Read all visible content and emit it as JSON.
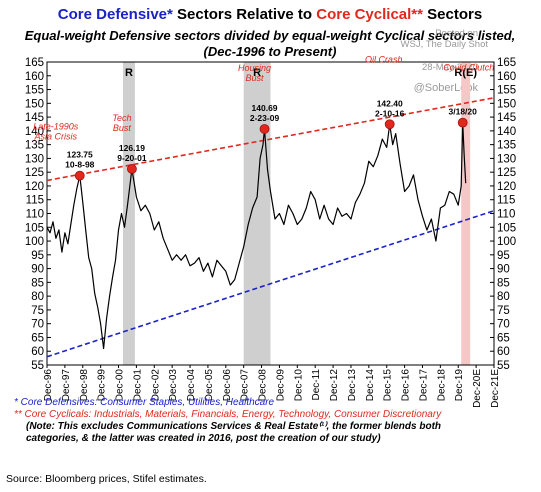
{
  "title": {
    "part1": "Core Defensive*",
    "part2": " Sectors  Relative to ",
    "part3": "Core Cyclical**",
    "part4": " Sectors",
    "color_defensive": "#1a22c8",
    "color_cyclical": "#e0281d"
  },
  "subtitle_line1": "Equal-weight Defensive sectors divided by equal-weight Cyclical sectors listed,",
  "subtitle_line2": "(Dec-1996 to Present)",
  "watermark": {
    "posted_on": "Posted on",
    "outlet": "WSJ, The Daily Shot",
    "date": "28-May-2020",
    "handle": "@SoberLook"
  },
  "chart_data": {
    "type": "line",
    "ylim": [
      55,
      165
    ],
    "yticks": [
      55,
      60,
      65,
      70,
      75,
      80,
      85,
      90,
      95,
      100,
      105,
      110,
      115,
      120,
      125,
      130,
      135,
      140,
      145,
      150,
      155,
      160,
      165
    ],
    "x_range": [
      "1996-12",
      "2021-12"
    ],
    "xtick_labels": [
      "Dec-96",
      "Dec-97",
      "Dec-98",
      "Dec-99",
      "Dec-00",
      "Dec-01",
      "Dec-02",
      "Dec-03",
      "Dec-04",
      "Dec-05",
      "Dec-06",
      "Dec-07",
      "Dec-08",
      "Dec-09",
      "Dec-10",
      "Dec-11",
      "Dec-12",
      "Dec-13",
      "Dec-14",
      "Dec-15",
      "Dec-16",
      "Dec-17",
      "Dec-18",
      "Dec-19",
      "Dec-20E",
      "Dec-21E"
    ],
    "series": [
      {
        "color": "#000000",
        "points": [
          [
            "1996-12",
            105
          ],
          [
            "1997-02",
            103
          ],
          [
            "1997-04",
            107
          ],
          [
            "1997-06",
            101
          ],
          [
            "1997-08",
            104
          ],
          [
            "1997-10",
            96
          ],
          [
            "1997-12",
            103
          ],
          [
            "1998-02",
            99
          ],
          [
            "1998-04",
            106
          ],
          [
            "1998-06",
            113
          ],
          [
            "1998-08",
            119
          ],
          [
            "1998-10",
            123.75
          ],
          [
            "1998-12",
            114
          ],
          [
            "1999-02",
            104
          ],
          [
            "1999-04",
            94
          ],
          [
            "1999-06",
            90
          ],
          [
            "1999-08",
            81
          ],
          [
            "1999-10",
            76
          ],
          [
            "1999-12",
            70
          ],
          [
            "2000-02",
            61
          ],
          [
            "2000-04",
            72
          ],
          [
            "2000-06",
            80
          ],
          [
            "2000-08",
            87
          ],
          [
            "2000-10",
            93
          ],
          [
            "2000-12",
            104
          ],
          [
            "2001-02",
            110
          ],
          [
            "2001-04",
            105
          ],
          [
            "2001-06",
            113
          ],
          [
            "2001-09",
            126.19
          ],
          [
            "2001-12",
            116
          ],
          [
            "2002-03",
            111
          ],
          [
            "2002-06",
            113
          ],
          [
            "2002-09",
            110
          ],
          [
            "2002-12",
            104
          ],
          [
            "2003-03",
            107
          ],
          [
            "2003-06",
            101
          ],
          [
            "2003-09",
            97
          ],
          [
            "2003-12",
            93
          ],
          [
            "2004-03",
            95
          ],
          [
            "2004-06",
            93
          ],
          [
            "2004-09",
            95
          ],
          [
            "2004-12",
            91
          ],
          [
            "2005-03",
            92
          ],
          [
            "2005-06",
            94
          ],
          [
            "2005-09",
            89
          ],
          [
            "2005-12",
            92
          ],
          [
            "2006-03",
            87
          ],
          [
            "2006-06",
            93
          ],
          [
            "2006-09",
            91
          ],
          [
            "2006-12",
            89
          ],
          [
            "2007-03",
            84
          ],
          [
            "2007-06",
            86
          ],
          [
            "2007-09",
            92
          ],
          [
            "2007-12",
            98
          ],
          [
            "2008-03",
            106
          ],
          [
            "2008-06",
            112
          ],
          [
            "2008-09",
            116
          ],
          [
            "2008-11",
            130
          ],
          [
            "2009-01",
            135
          ],
          [
            "2009-02",
            140.69
          ],
          [
            "2009-04",
            126
          ],
          [
            "2009-06",
            118
          ],
          [
            "2009-09",
            108
          ],
          [
            "2009-12",
            110
          ],
          [
            "2010-03",
            106
          ],
          [
            "2010-06",
            113
          ],
          [
            "2010-09",
            110
          ],
          [
            "2010-12",
            106
          ],
          [
            "2011-03",
            108
          ],
          [
            "2011-06",
            112
          ],
          [
            "2011-09",
            118
          ],
          [
            "2011-12",
            115
          ],
          [
            "2012-03",
            108
          ],
          [
            "2012-06",
            113
          ],
          [
            "2012-09",
            108
          ],
          [
            "2012-12",
            106
          ],
          [
            "2013-03",
            112
          ],
          [
            "2013-06",
            109
          ],
          [
            "2013-09",
            110
          ],
          [
            "2013-12",
            108
          ],
          [
            "2014-03",
            114
          ],
          [
            "2014-06",
            117
          ],
          [
            "2014-09",
            121
          ],
          [
            "2014-12",
            129
          ],
          [
            "2015-03",
            127
          ],
          [
            "2015-06",
            131
          ],
          [
            "2015-09",
            137
          ],
          [
            "2015-12",
            134
          ],
          [
            "2016-02",
            142.4
          ],
          [
            "2016-04",
            135
          ],
          [
            "2016-06",
            139
          ],
          [
            "2016-09",
            128
          ],
          [
            "2016-12",
            118
          ],
          [
            "2017-03",
            120
          ],
          [
            "2017-06",
            124
          ],
          [
            "2017-09",
            115
          ],
          [
            "2017-12",
            109
          ],
          [
            "2018-03",
            104
          ],
          [
            "2018-06",
            108
          ],
          [
            "2018-09",
            100
          ],
          [
            "2018-12",
            112
          ],
          [
            "2019-03",
            113
          ],
          [
            "2019-06",
            118
          ],
          [
            "2019-09",
            117
          ],
          [
            "2019-12",
            113
          ],
          [
            "2020-02",
            120
          ],
          [
            "2020-03",
            143
          ],
          [
            "2020-04",
            131
          ],
          [
            "2020-05",
            121
          ]
        ]
      }
    ],
    "upper_trend": {
      "color": "#e0281d",
      "from": [
        "1996-12",
        122
      ],
      "to": [
        "2021-12",
        152
      ]
    },
    "lower_trend": {
      "color": "#1a22c8",
      "from": [
        "1996-12",
        58
      ],
      "to": [
        "2021-12",
        111
      ]
    },
    "recessions": [
      {
        "label": "R",
        "from": "2001-03",
        "to": "2001-11"
      },
      {
        "label": "R",
        "from": "2007-12",
        "to": "2009-06"
      },
      {
        "label": "R(E)",
        "from": "2020-02",
        "to": "2020-08",
        "estimated": true
      }
    ],
    "markers": [
      {
        "date": "1998-10",
        "value": 123.75,
        "lines": [
          "123.75",
          "10-8-98"
        ]
      },
      {
        "date": "2001-09",
        "value": 126.19,
        "lines": [
          "126.19",
          "9-20-01"
        ]
      },
      {
        "date": "2009-02",
        "value": 140.69,
        "lines": [
          "140.69",
          "2-23-09"
        ]
      },
      {
        "date": "2016-02",
        "value": 142.4,
        "lines": [
          "142.40",
          "2-10-16"
        ]
      },
      {
        "date": "2020-03",
        "value": 143,
        "lines": [
          "3/18/20"
        ]
      }
    ],
    "events": [
      {
        "lines": [
          "Late-1990s",
          "Asia Crisis"
        ]
      },
      {
        "lines": [
          "Tech",
          "Bust"
        ]
      },
      {
        "lines": [
          "Housing",
          "Bust"
        ]
      },
      {
        "lines": [
          "Oil Crash"
        ]
      },
      {
        "lines": [
          "Covid Clutch"
        ]
      }
    ]
  },
  "notes": {
    "defensive": "*  Core Defensives: Consumer Staples, Utilities, Healthcare",
    "cyclical": "** Core Cyclicals: Industrials, Materials, Financials, Energy, Technology, Consumer Discretionary",
    "note_line1": "(Note: This excludes Communications Services & Real Estate⁽¹⁾, the former blends both",
    "note_line2": "categories, & the latter was created in 2016, post the creation of our study)"
  },
  "source": "Source: Bloomberg prices, Stifel estimates."
}
